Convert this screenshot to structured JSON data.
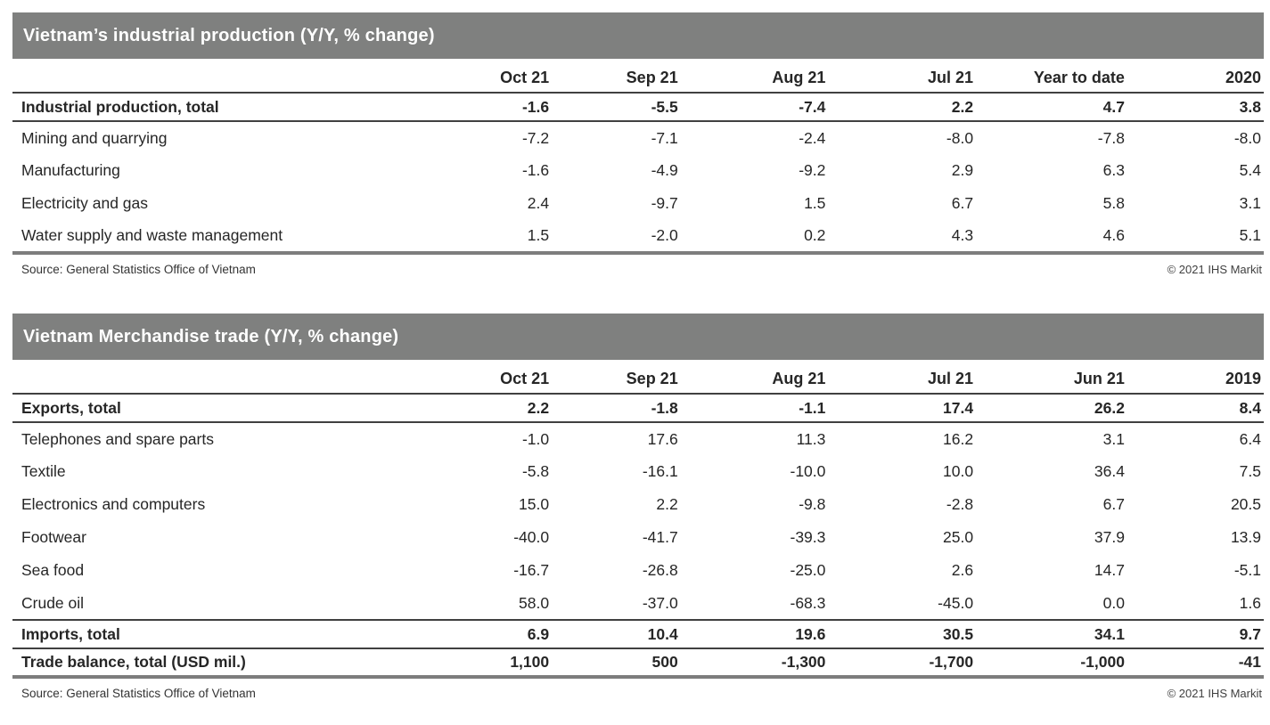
{
  "colors": {
    "header_bar": "#7f807f",
    "header_text": "#ffffff",
    "body_text": "#262626",
    "rule_dark": "#404040",
    "rule_final": "#7d7d7d"
  },
  "chart_data": [
    {
      "type": "table",
      "title": "Vietnam’s industrial production (Y/Y, % change)",
      "columns": [
        "Oct 21",
        "Sep 21",
        "Aug 21",
        "Jul 21",
        "Year to date",
        "2020"
      ],
      "rows": [
        {
          "label": "Industrial production, total",
          "emphasis": true,
          "values": [
            "-1.6",
            "-5.5",
            "-7.4",
            "2.2",
            "4.7",
            "3.8"
          ]
        },
        {
          "label": "Mining and quarrying",
          "emphasis": false,
          "values": [
            "-7.2",
            "-7.1",
            "-2.4",
            "-8.0",
            "-7.8",
            "-8.0"
          ]
        },
        {
          "label": "Manufacturing",
          "emphasis": false,
          "values": [
            "-1.6",
            "-4.9",
            "-9.2",
            "2.9",
            "6.3",
            "5.4"
          ]
        },
        {
          "label": "Electricity and gas",
          "emphasis": false,
          "values": [
            "2.4",
            "-9.7",
            "1.5",
            "6.7",
            "5.8",
            "3.1"
          ]
        },
        {
          "label": "Water supply and waste management",
          "emphasis": false,
          "values": [
            "1.5",
            "-2.0",
            "0.2",
            "4.3",
            "4.6",
            "5.1"
          ]
        }
      ],
      "source": "Source: General Statistics Office of Vietnam",
      "copyright": "© 2021 IHS Markit"
    },
    {
      "type": "table",
      "title": "Vietnam Merchandise trade (Y/Y, % change)",
      "columns": [
        "Oct 21",
        "Sep 21",
        "Aug 21",
        "Jul 21",
        "Jun 21",
        "2019"
      ],
      "rows": [
        {
          "label": "Exports, total",
          "emphasis": true,
          "values": [
            "2.2",
            "-1.8",
            "-1.1",
            "17.4",
            "26.2",
            "8.4"
          ]
        },
        {
          "label": "Telephones and spare parts",
          "emphasis": false,
          "values": [
            "-1.0",
            "17.6",
            "11.3",
            "16.2",
            "3.1",
            "6.4"
          ]
        },
        {
          "label": "Textile",
          "emphasis": false,
          "values": [
            "-5.8",
            "-16.1",
            "-10.0",
            "10.0",
            "36.4",
            "7.5"
          ]
        },
        {
          "label": "Electronics and computers",
          "emphasis": false,
          "values": [
            "15.0",
            "2.2",
            "-9.8",
            "-2.8",
            "6.7",
            "20.5"
          ]
        },
        {
          "label": "Footwear",
          "emphasis": false,
          "values": [
            "-40.0",
            "-41.7",
            "-39.3",
            "25.0",
            "37.9",
            "13.9"
          ]
        },
        {
          "label": "Sea food",
          "emphasis": false,
          "values": [
            "-16.7",
            "-26.8",
            "-25.0",
            "2.6",
            "14.7",
            "-5.1"
          ]
        },
        {
          "label": "Crude oil",
          "emphasis": false,
          "values": [
            "58.0",
            "-37.0",
            "-68.3",
            "-45.0",
            "0.0",
            "1.6"
          ]
        },
        {
          "label": "Imports, total",
          "emphasis": true,
          "values": [
            "6.9",
            "10.4",
            "19.6",
            "30.5",
            "34.1",
            "9.7"
          ]
        },
        {
          "label": "Trade balance, total (USD mil.)",
          "emphasis": true,
          "values": [
            "1,100",
            "500",
            "-1,300",
            "-1,700",
            "-1,000",
            "-41"
          ]
        }
      ],
      "source": "Source: General Statistics Office of Vietnam",
      "copyright": "© 2021 IHS Markit"
    }
  ]
}
